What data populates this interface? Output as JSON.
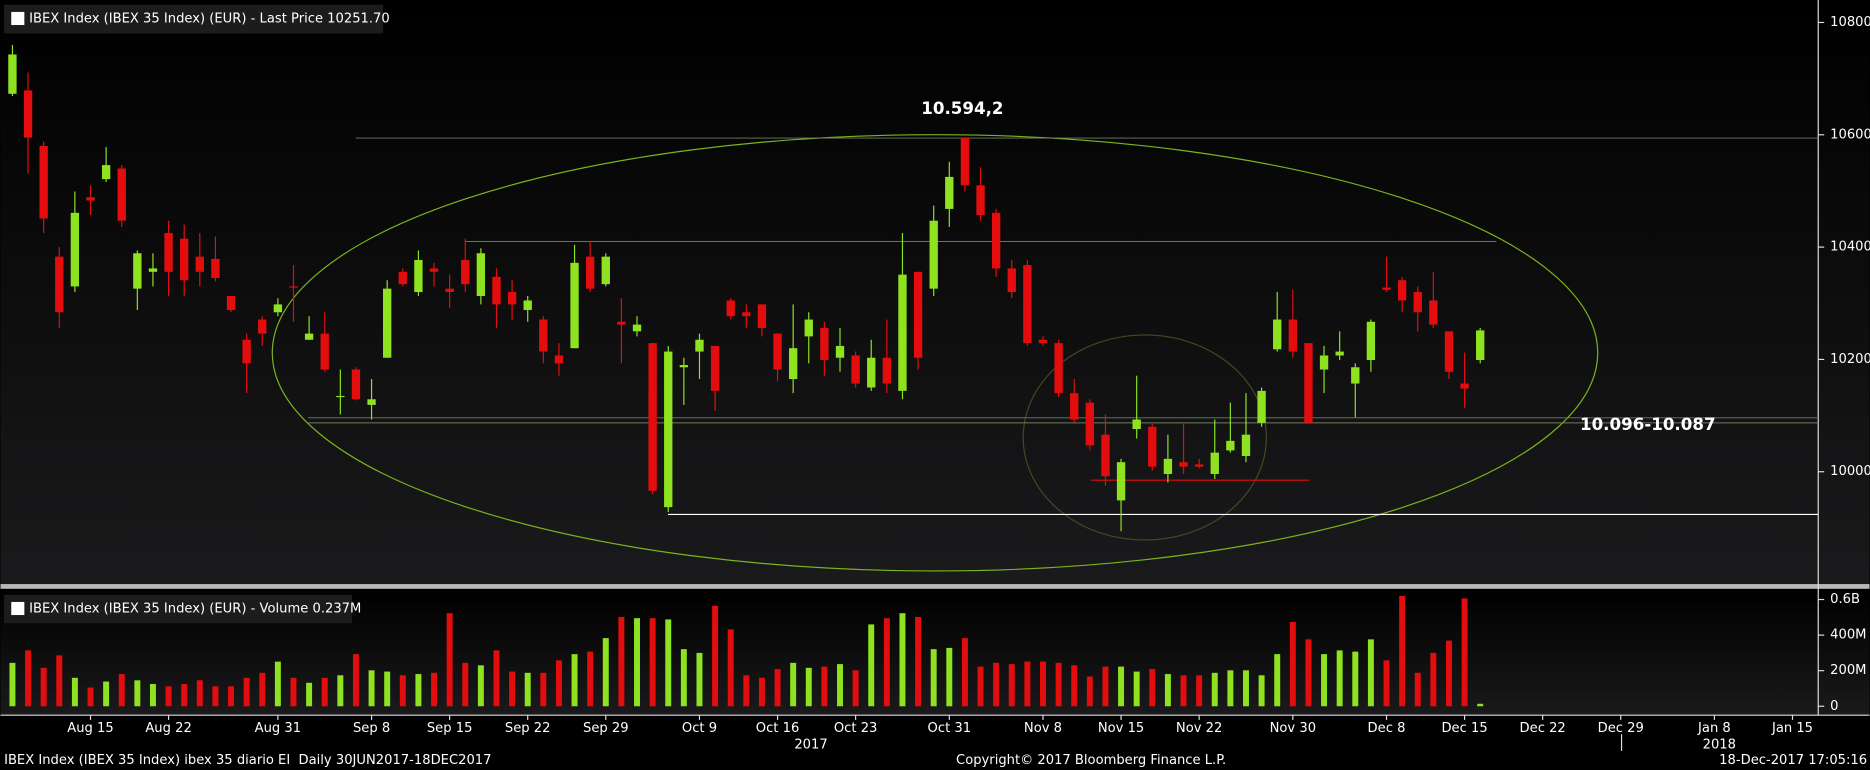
{
  "chart_data": [
    {
      "type": "candlestick",
      "title": "IBEX Index (IBEX 35 Index) (EUR) - Last Price 10251.70",
      "categories": [
        null,
        null,
        null,
        null,
        null,
        "Aug 15",
        null,
        null,
        null,
        null,
        "Aug 22",
        null,
        null,
        null,
        null,
        null,
        null,
        "Aug 31",
        null,
        null,
        null,
        null,
        null,
        "Sep 8",
        null,
        null,
        null,
        null,
        "Sep 15",
        null,
        null,
        null,
        null,
        "Sep 22",
        null,
        null,
        null,
        null,
        "Sep 29",
        null,
        null,
        null,
        null,
        null,
        "Oct 9",
        null,
        null,
        null,
        null,
        "Oct 16",
        null,
        null,
        null,
        null,
        "Oct 23",
        null,
        null,
        null,
        null,
        null,
        "Oct 31",
        null,
        null,
        null,
        null,
        null,
        "Nov 8",
        null,
        null,
        null,
        null,
        "Nov 15",
        null,
        null,
        null,
        null,
        "Nov 22",
        null,
        null,
        null,
        null,
        null,
        "Nov 30",
        null,
        null,
        null,
        null,
        null,
        "Dec 8",
        null,
        null,
        null,
        null,
        "Dec 15",
        null,
        null,
        null,
        null,
        "Dec 22",
        null,
        null,
        null,
        null,
        "Dec 29",
        null,
        null,
        null,
        null,
        null,
        "Jan 8",
        null,
        null,
        null,
        null,
        "Jan 15",
        null
      ],
      "year_labels": [
        "2017",
        "2018"
      ],
      "open": [
        10673,
        10679,
        10580,
        10383,
        10330,
        10489,
        10521,
        10540,
        10326,
        10356,
        10425,
        10415,
        10383,
        10379,
        10313,
        10235,
        10271,
        10284,
        10330,
        10235,
        10246,
        10133,
        10182,
        10119,
        10203,
        10356,
        10320,
        10362,
        10326,
        10377,
        10313,
        10347,
        10320,
        10288,
        10271,
        10207,
        10220,
        10383,
        10334,
        10267,
        10250,
        10229,
        9937,
        10186,
        10214,
        10224,
        10305,
        10284,
        10298,
        10246,
        10165,
        10241,
        10256,
        10203,
        10207,
        10150,
        10203,
        10144,
        10356,
        10326,
        10468,
        10595,
        10510,
        10461,
        10362,
        10368,
        10235,
        10229,
        10140,
        10123,
        10066,
        9949,
        10076,
        10080,
        9996,
        10017,
        10013,
        9996,
        10038,
        10028,
        10087,
        10218,
        10271,
        10229,
        10182,
        10207,
        10157,
        10199,
        10328,
        10341,
        10320,
        10305,
        10250,
        10157,
        10199,
        null,
        null,
        null,
        null,
        null,
        null,
        null,
        null,
        null,
        null,
        null,
        null,
        null,
        null,
        null,
        null,
        null,
        null,
        null,
        null,
        null
      ],
      "high": [
        10760,
        10711,
        10588,
        10400,
        10499,
        10510,
        10578,
        10546,
        10394,
        10389,
        10447,
        10440,
        10425,
        10419,
        10313,
        10246,
        10277,
        10309,
        10368,
        10277,
        10284,
        10182,
        10186,
        10165,
        10341,
        10362,
        10394,
        10372,
        10351,
        10415,
        10398,
        10362,
        10341,
        10313,
        10277,
        10229,
        10404,
        10411,
        10389,
        10309,
        10277,
        10229,
        10224,
        10203,
        10246,
        10224,
        10309,
        10298,
        10298,
        10246,
        10298,
        10284,
        10267,
        10256,
        10214,
        10235,
        10271,
        10425,
        10356,
        10474,
        10552,
        10594.2,
        10542,
        10468,
        10377,
        10377,
        10241,
        10235,
        10165,
        10129,
        10102,
        10023,
        10171,
        10087,
        10066,
        10087,
        10023,
        10093,
        10123,
        10140,
        10150,
        10320,
        10324,
        10229,
        10224,
        10250,
        10193,
        10271,
        10383,
        10347,
        10330,
        10356,
        10250,
        10212,
        10256,
        null,
        null,
        null,
        null,
        null,
        null,
        null,
        null,
        null,
        null,
        null,
        null,
        null,
        null,
        null,
        null,
        null,
        null,
        null,
        null,
        null
      ],
      "low": [
        10669,
        10531,
        10425,
        10256,
        10320,
        10457,
        10516,
        10436,
        10288,
        10330,
        10313,
        10313,
        10330,
        10339,
        10284,
        10140,
        10224,
        10277,
        10267,
        10235,
        10178,
        10102,
        10127,
        10093,
        10203,
        10330,
        10313,
        10330,
        10292,
        10320,
        10298,
        10256,
        10271,
        10267,
        10193,
        10171,
        10220,
        10320,
        10330,
        10193,
        10241,
        9960,
        9928,
        10119,
        10165,
        10108,
        10271,
        10256,
        10241,
        10161,
        10140,
        10193,
        10171,
        10178,
        10150,
        10144,
        10140,
        10129,
        10182,
        10313,
        10436,
        10499,
        10447,
        10347,
        10309,
        10224,
        10224,
        10133,
        10087,
        10038,
        9975,
        9894,
        10059,
        10002,
        9981,
        9996,
        10006,
        9987,
        10034,
        10017,
        10080,
        10214,
        10203,
        10087,
        10140,
        10199,
        10097,
        10178,
        10320,
        10284,
        10250,
        10256,
        10165,
        10114,
        10193,
        null,
        null,
        null,
        null,
        null,
        null,
        null,
        null,
        null,
        null,
        null,
        null,
        null,
        null,
        null,
        null,
        null,
        null,
        null,
        null,
        null
      ],
      "close": [
        10743,
        10595,
        10451,
        10284,
        10461,
        10483,
        10546,
        10447,
        10389,
        10362,
        10356,
        10341,
        10356,
        10345,
        10288,
        10193,
        10246,
        10298,
        10328,
        10246,
        10182,
        10135,
        10129,
        10129,
        10326,
        10334,
        10377,
        10356,
        10320,
        10334,
        10389,
        10298,
        10298,
        10305,
        10214,
        10193,
        10372,
        10326,
        10383,
        10262,
        10262,
        9966,
        10214,
        10190,
        10235,
        10144,
        10277,
        10277,
        10256,
        10182,
        10220,
        10271,
        10199,
        10224,
        10157,
        10203,
        10157,
        10351,
        10203,
        10447,
        10525,
        10510,
        10457,
        10362,
        10320,
        10229,
        10229,
        10140,
        10093,
        10047,
        9992,
        10017,
        10093,
        10009,
        10023,
        10009,
        10009,
        10034,
        10055,
        10066,
        10144,
        10271,
        10214,
        10087,
        10207,
        10214,
        10186,
        10267,
        10324,
        10305,
        10284,
        10262,
        10178,
        10148,
        10251.7,
        null,
        null,
        null,
        null,
        null,
        null,
        null,
        null,
        null,
        null,
        null,
        null,
        null,
        null,
        null,
        null,
        null,
        null,
        null,
        null,
        null
      ],
      "up_color": "#8ee21f",
      "down_color": "#e40d0d",
      "ylim": [
        9800,
        10840
      ],
      "yticks": [
        10000,
        10200,
        10400,
        10600,
        10800
      ],
      "annotations": [
        {
          "label": "10.594,2",
          "values": [
            10594.2
          ]
        },
        {
          "label": "10.096-10.087",
          "values": [
            10096,
            10087
          ]
        }
      ],
      "levels": [
        10410,
        9924,
        9985
      ]
    },
    {
      "type": "bar",
      "title": "IBEX Index (IBEX 35 Index) (EUR) - Volume 0.237M",
      "values": [
        244,
        314,
        216,
        286,
        160,
        105,
        139,
        181,
        146,
        125,
        112,
        125,
        146,
        112,
        112,
        160,
        188,
        251,
        160,
        132,
        160,
        174,
        293,
        202,
        195,
        174,
        181,
        188,
        523,
        244,
        230,
        314,
        195,
        188,
        188,
        258,
        293,
        307,
        383,
        502,
        495,
        495,
        488,
        321,
        300,
        565,
        432,
        174,
        160,
        209,
        244,
        216,
        223,
        237,
        202,
        460,
        495,
        523,
        502,
        321,
        328,
        383,
        223,
        244,
        237,
        251,
        251,
        244,
        230,
        167,
        223,
        223,
        195,
        209,
        181,
        174,
        174,
        188,
        202,
        202,
        174,
        293,
        474,
        376,
        293,
        314,
        307,
        376,
        258,
        620,
        188,
        300,
        369,
        606,
        14,
        null,
        null,
        null,
        null,
        null,
        null,
        null,
        null,
        null,
        null,
        null,
        null,
        null,
        null,
        null,
        null,
        null,
        null,
        null,
        null,
        null
      ],
      "ylim": [
        -50,
        660
      ],
      "yticks": [
        {
          "value": 600,
          "label": "0.6B"
        },
        {
          "value": 400,
          "label": "400M"
        },
        {
          "value": 200,
          "label": "200M"
        },
        0
      ]
    }
  ],
  "footer": {
    "left": "IBEX Index (IBEX 35 Index) ibex 35 diario EI  Daily 30JUN2017-18DEC2017",
    "center": "Copyright© 2017 Bloomberg Finance L.P.",
    "right": "18-Dec-2017 17:05:16"
  }
}
